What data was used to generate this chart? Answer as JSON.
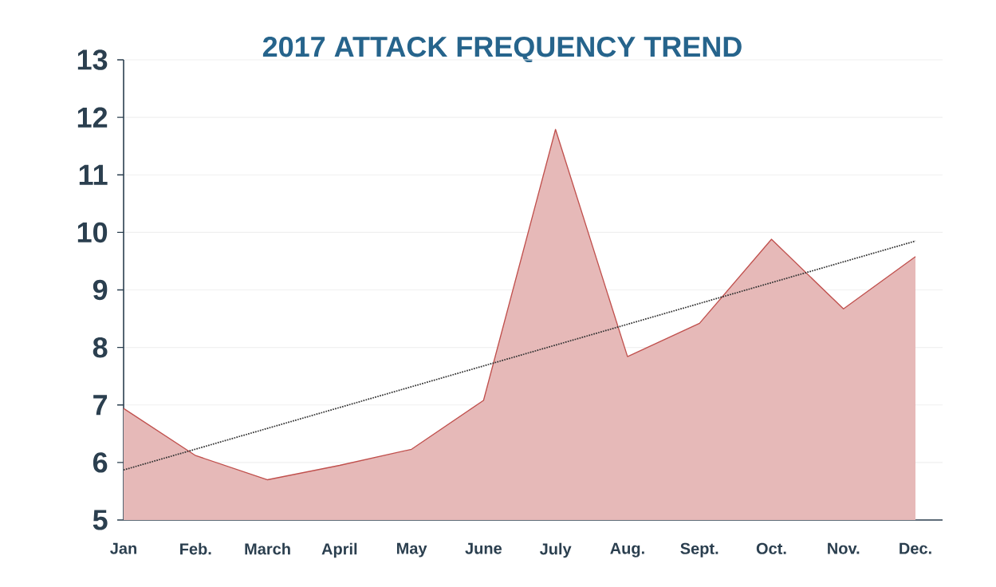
{
  "chart_data": {
    "type": "area",
    "title": "2017 ATTACK FREQUENCY TREND",
    "categories": [
      "Jan",
      "Feb.",
      "March",
      "April",
      "May",
      "June",
      "July",
      "Aug.",
      "Sept.",
      "Oct.",
      "Nov.",
      "Dec."
    ],
    "series": [
      {
        "color": "#c0504d",
        "values": [
          6.94,
          6.12,
          5.7,
          5.95,
          6.23,
          7.08,
          11.79,
          7.84,
          8.42,
          9.88,
          8.67,
          9.58
        ]
      },
      {
        "type": "line",
        "color": "#333333",
        "line_style": "dotted",
        "values": [
          5.87,
          null,
          null,
          null,
          null,
          null,
          null,
          null,
          null,
          null,
          null,
          9.85
        ]
      }
    ],
    "ylim": [
      5,
      13
    ],
    "yticks": [
      5,
      6,
      7,
      8,
      9,
      10,
      11,
      12,
      13
    ],
    "grid": "y"
  }
}
